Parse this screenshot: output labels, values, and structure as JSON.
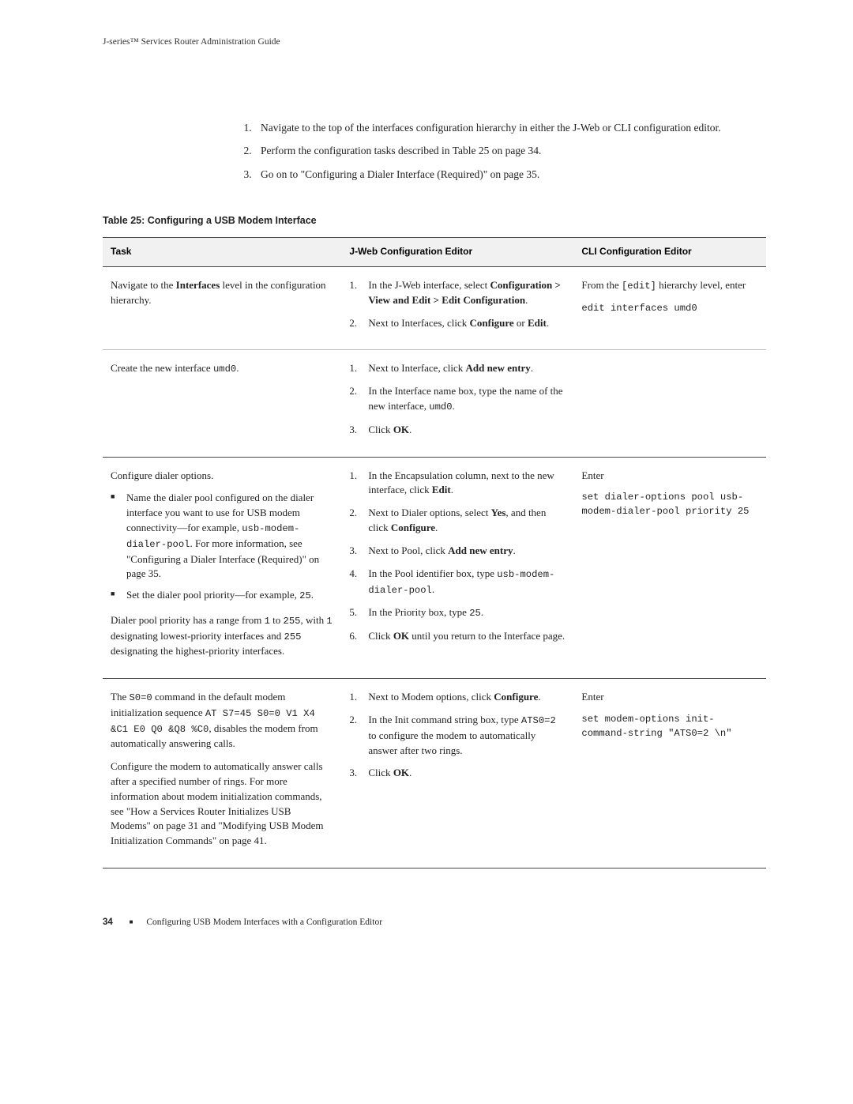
{
  "running_head": "J-series™ Services Router Administration Guide",
  "intro_steps": [
    "Navigate to the top of the interfaces configuration hierarchy in either the J-Web or CLI configuration editor.",
    "Perform the configuration tasks described in Table 25 on page 34.",
    "Go on to \"Configuring a Dialer Interface (Required)\" on page 35."
  ],
  "table_caption": "Table 25: Configuring a USB Modem Interface",
  "headers": {
    "task": "Task",
    "jweb": "J-Web Configuration Editor",
    "cli": "CLI Configuration Editor"
  },
  "r1": {
    "task_a": "Navigate to the ",
    "task_b": "Interfaces",
    "task_c": " level in the configuration hierarchy.",
    "s1a": "In the J-Web interface, select ",
    "s1b": "Configuration > View and Edit > Edit Configuration",
    "s1c": ".",
    "s2a": "Next to Interfaces, click ",
    "s2b": "Configure",
    "s2c": " or ",
    "s2d": "Edit",
    "s2e": ".",
    "cli_a": "From the ",
    "cli_b": "[edit]",
    "cli_c": " hierarchy level, enter",
    "cli_cmd": "edit interfaces umd0"
  },
  "r2": {
    "task_a": "Create the new interface ",
    "task_b": "umd0",
    "task_c": ".",
    "s1a": "Next to Interface, click ",
    "s1b": "Add new entry",
    "s1c": ".",
    "s2a": "In the Interface name box, type the name of the new interface, ",
    "s2b": "umd0",
    "s2c": ".",
    "s3a": "Click ",
    "s3b": "OK",
    "s3c": "."
  },
  "r3": {
    "title": "Configure dialer options.",
    "b1a": "Name the dialer pool configured on the dialer interface you want to use for USB modem connectivity—for example, ",
    "b1b": "usb-modem-dialer-pool",
    "b1c": ". For more information, see \"Configuring a Dialer Interface (Required)\" on page 35.",
    "b2a": "Set the dialer pool priority—for example, ",
    "b2b": "25",
    "b2c": ".",
    "p_a": "Dialer pool priority has a range from ",
    "p_b": "1",
    "p_c": " to ",
    "p_d": "255",
    "p_e": ", with ",
    "p_f": "1",
    "p_g": " designating lowest-priority interfaces and ",
    "p_h": "255",
    "p_i": " designating the highest-priority interfaces.",
    "s1a": "In the Encapsulation column, next to the new interface, click ",
    "s1b": "Edit",
    "s1c": ".",
    "s2a": "Next to Dialer options, select ",
    "s2b": "Yes",
    "s2c": ", and then click ",
    "s2d": "Configure",
    "s2e": ".",
    "s3a": "Next to Pool, click ",
    "s3b": "Add new entry",
    "s3c": ".",
    "s4a": "In the Pool identifier box, type ",
    "s4b": "usb-modem-dialer-pool",
    "s4c": ".",
    "s5a": "In the Priority box, type ",
    "s5b": "25",
    "s5c": ".",
    "s6a": "Click ",
    "s6b": "OK",
    "s6c": " until you return to the Interface page.",
    "cli_a": "Enter",
    "cli_b": "set dialer-options pool usb-modem-dialer-pool priority 25"
  },
  "r4": {
    "p1a": "The ",
    "p1b": "S0=0",
    "p1c": " command in the default modem initialization sequence ",
    "p1d": "AT S7=45 S0=0 V1 X4 &C1 E0 Q0 &Q8 %C0",
    "p1e": ", disables the modem from automatically answering calls.",
    "p2": "Configure the modem to automatically answer calls after a specified number of rings. For more information about modem initialization commands, see \"How a Services Router Initializes USB Modems\" on page 31 and \"Modifying USB Modem Initialization Commands\" on page 41.",
    "s1a": "Next to Modem options, click ",
    "s1b": "Configure",
    "s1c": ".",
    "s2a": "In the Init command string box, type ",
    "s2b": "ATS0=2",
    "s2c": " to configure the modem to automatically answer after two rings.",
    "s3a": "Click ",
    "s3b": "OK",
    "s3c": ".",
    "cli_a": "Enter",
    "cli_b": "set modem-options init-command-string \"ATS0=2 \\n\""
  },
  "footer": {
    "page": "34",
    "section": "Configuring USB Modem Interfaces with a Configuration Editor"
  }
}
